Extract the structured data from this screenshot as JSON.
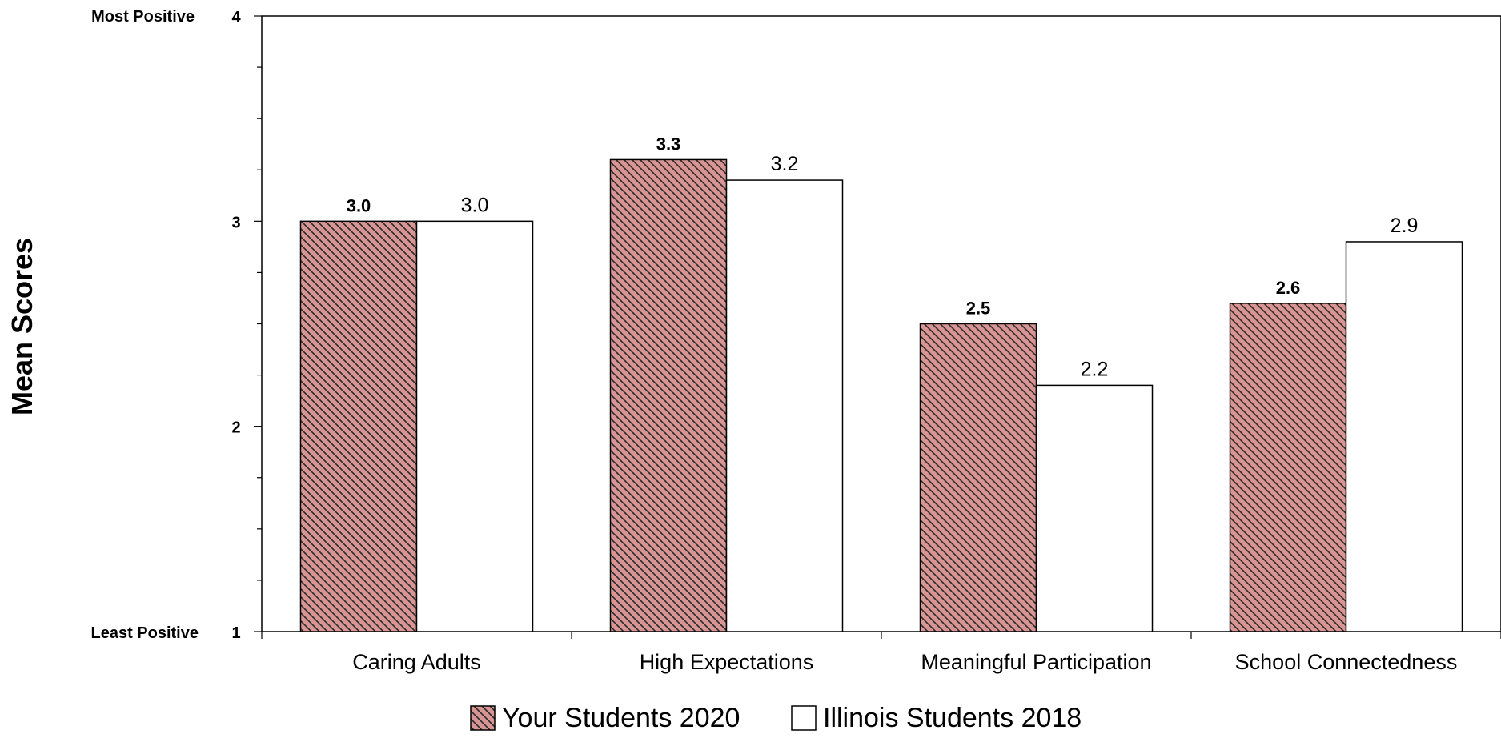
{
  "chart_data": {
    "type": "bar",
    "ylabel": "Mean Scores",
    "xlabel": "",
    "ylim": [
      1,
      4
    ],
    "yticks": [
      1,
      2,
      3,
      4
    ],
    "y_anchor_labels": {
      "top": "Most Positive",
      "bottom": "Least Positive"
    },
    "categories": [
      "Caring Adults",
      "High Expectations",
      "Meaningful Participation",
      "School Connectedness"
    ],
    "series": [
      {
        "name": "Your Students 2020",
        "values": [
          3.0,
          3.3,
          2.5,
          2.6
        ],
        "labels": [
          "3.0",
          "3.3",
          "2.5",
          "2.6"
        ],
        "color": "#d99594",
        "pattern": "diagonal-hatch"
      },
      {
        "name": "Illinois Students 2018",
        "values": [
          3.0,
          3.2,
          2.2,
          2.9
        ],
        "labels": [
          "3.0",
          "3.2",
          "2.2",
          "2.9"
        ],
        "color": "#ffffff",
        "pattern": "none"
      }
    ],
    "legend_position": "bottom",
    "grid": false
  }
}
